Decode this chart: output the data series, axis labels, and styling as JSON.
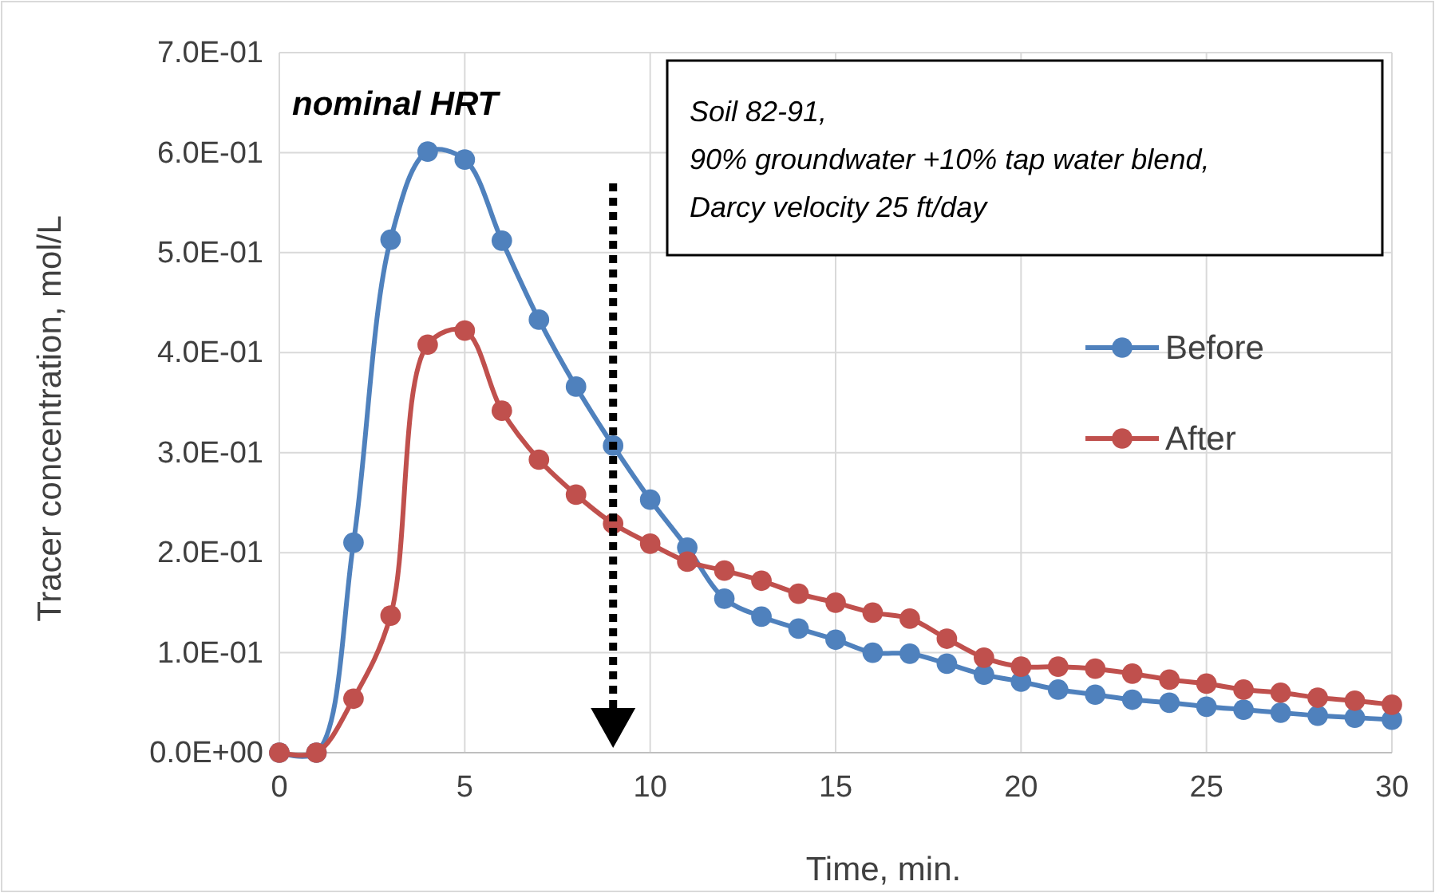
{
  "chart_data": {
    "type": "line",
    "xlabel": "Time, min.",
    "ylabel": "Tracer concentration, mol/L",
    "x": [
      0,
      1,
      2,
      3,
      4,
      5,
      6,
      7,
      8,
      9,
      10,
      11,
      12,
      13,
      14,
      15,
      16,
      17,
      18,
      19,
      20,
      21,
      22,
      23,
      24,
      25,
      26,
      27,
      28,
      29,
      30
    ],
    "series": [
      {
        "name": "Before",
        "color": "#4f81bd",
        "values": [
          0,
          0,
          0.21,
          0.513,
          0.601,
          0.593,
          0.512,
          0.433,
          0.366,
          0.307,
          0.253,
          0.205,
          0.154,
          0.136,
          0.124,
          0.113,
          0.1,
          0.099,
          0.089,
          0.078,
          0.071,
          0.063,
          0.058,
          0.053,
          0.05,
          0.046,
          0.043,
          0.04,
          0.037,
          0.035,
          0.033
        ]
      },
      {
        "name": "After",
        "color": "#c0504d",
        "values": [
          0,
          0,
          0.054,
          0.137,
          0.408,
          0.422,
          0.342,
          0.293,
          0.258,
          0.229,
          0.209,
          0.191,
          0.182,
          0.172,
          0.159,
          0.15,
          0.14,
          0.134,
          0.114,
          0.095,
          0.086,
          0.086,
          0.084,
          0.079,
          0.073,
          0.069,
          0.063,
          0.06,
          0.055,
          0.052,
          0.048
        ]
      }
    ],
    "xlim": [
      0,
      30
    ],
    "xticks": [
      0,
      5,
      10,
      15,
      20,
      25,
      30
    ],
    "ylim": [
      0,
      0.7
    ],
    "yticks": [
      {
        "value": 0,
        "label": "0.0E+00"
      },
      {
        "value": 0.1,
        "label": "1.0E-01"
      },
      {
        "value": 0.2,
        "label": "2.0E-01"
      },
      {
        "value": 0.3,
        "label": "3.0E-01"
      },
      {
        "value": 0.4,
        "label": "4.0E-01"
      },
      {
        "value": 0.5,
        "label": "5.0E-01"
      },
      {
        "value": 0.6,
        "label": "6.0E-01"
      },
      {
        "value": 0.7,
        "label": "7.0E-01"
      }
    ],
    "grid": true,
    "legend": "right",
    "marker": "circle",
    "line_style": "solid",
    "ref_lines": [
      {
        "axis": "x",
        "value": 9,
        "color": "#000000",
        "line_style": "dotted"
      }
    ],
    "annotations": [
      "nominal HRT",
      "Soil 82-91,\n90% groundwater +10% tap water blend,\nDarcy velocity 25 ft/day"
    ]
  }
}
